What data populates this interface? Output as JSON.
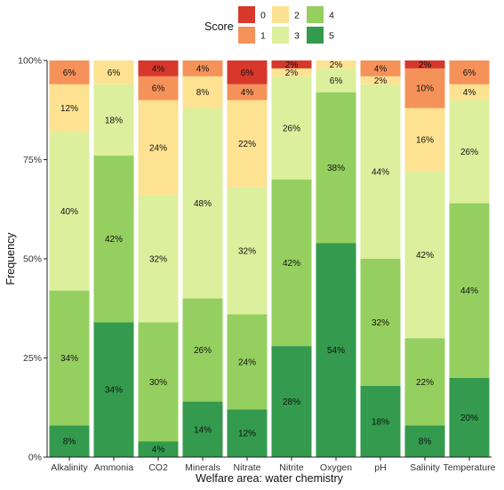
{
  "chart_data": {
    "type": "bar",
    "stacked": true,
    "percent": true,
    "xlabel": "Welfare area: water chemistry",
    "ylabel": "Frequency",
    "ylim": [
      0,
      100
    ],
    "yticks": [
      "0%",
      "25%",
      "50%",
      "75%",
      "100%"
    ],
    "ytick_values": [
      0,
      25,
      50,
      75,
      100
    ],
    "categories": [
      "Alkalinity",
      "Ammonia",
      "CO2",
      "Minerals",
      "Nitrate",
      "Nitrite",
      "Oxygen",
      "pH",
      "Salinity",
      "Temperature"
    ],
    "legend": {
      "title": "Score",
      "position": "top",
      "entries": [
        "0",
        "1",
        "2",
        "3",
        "4",
        "5"
      ]
    },
    "series": [
      {
        "name": "5",
        "color": "#339a4e",
        "values": [
          8,
          34,
          4,
          14,
          12,
          28,
          54,
          18,
          8,
          20
        ],
        "labels": [
          "8%",
          "34%",
          "4%",
          "14%",
          "12%",
          "28%",
          "54%",
          "18%",
          "8%",
          "20%"
        ]
      },
      {
        "name": "4",
        "color": "#95cf5f",
        "values": [
          34,
          42,
          30,
          26,
          24,
          42,
          38,
          32,
          22,
          44
        ],
        "labels": [
          "34%",
          "42%",
          "30%",
          "26%",
          "24%",
          "42%",
          "38%",
          "32%",
          "22%",
          "44%"
        ]
      },
      {
        "name": "3",
        "color": "#dcef9c",
        "values": [
          40,
          18,
          32,
          48,
          32,
          26,
          6,
          44,
          42,
          26
        ],
        "labels": [
          "40%",
          "18%",
          "32%",
          "48%",
          "32%",
          "26%",
          "6%",
          "44%",
          "42%",
          "26%"
        ]
      },
      {
        "name": "2",
        "color": "#fde292",
        "values": [
          12,
          6,
          24,
          8,
          22,
          2,
          2,
          2,
          16,
          4
        ],
        "labels": [
          "12%",
          "6%",
          "24%",
          "8%",
          "22%",
          "2%",
          "2%",
          "2%",
          "16%",
          "4%"
        ]
      },
      {
        "name": "1",
        "color": "#f59259",
        "values": [
          6,
          0,
          6,
          4,
          4,
          0,
          0,
          4,
          10,
          6
        ],
        "labels": [
          "6%",
          "",
          "6%",
          "4%",
          "4%",
          "",
          "",
          "4%",
          "10%",
          "6%"
        ]
      },
      {
        "name": "0",
        "color": "#d7382b",
        "values": [
          0,
          0,
          4,
          0,
          6,
          2,
          0,
          0,
          2,
          0
        ],
        "labels": [
          "",
          "",
          "4%",
          "",
          "6%",
          "2%",
          "",
          "",
          "2%",
          ""
        ]
      }
    ]
  }
}
